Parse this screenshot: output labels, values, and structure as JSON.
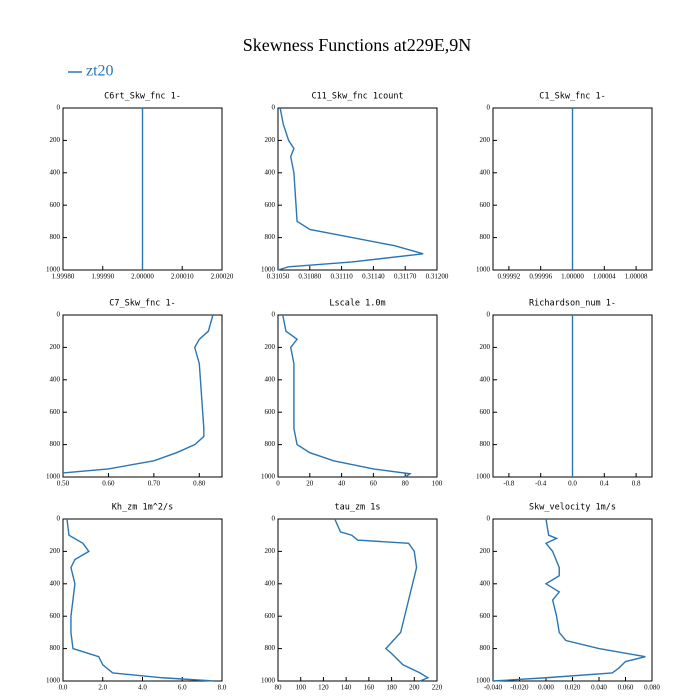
{
  "title": "Skewness Functions at229E,9N",
  "legend": {
    "name": "zt20",
    "color": "#2a76b4"
  },
  "chart_data": [
    {
      "type": "line",
      "title": "C6rt_Skw_fnc  1-",
      "color": "#2a76b4",
      "yinvert": true,
      "xlim": [
        1.9998,
        2.0002
      ],
      "xticks": [
        {
          "value": 1.9998,
          "label": "1.99980"
        },
        {
          "value": 1.9999,
          "label": "1.99990"
        },
        {
          "value": 2.0,
          "label": "2.00000"
        },
        {
          "value": 2.0001,
          "label": "2.00010"
        },
        {
          "value": 2.0002,
          "label": "2.00020"
        }
      ],
      "ylim": [
        0,
        1000
      ],
      "yticks": [
        0,
        200,
        400,
        600,
        800,
        1000
      ],
      "y": [
        0,
        1000
      ],
      "values": [
        2.0,
        2.0
      ]
    },
    {
      "type": "line",
      "title": "C11_Skw_fnc  1count",
      "color": "#2a76b4",
      "yinvert": true,
      "xlim": [
        0.3105,
        0.312
      ],
      "xticks": [
        {
          "value": 0.3105,
          "label": "0.31050"
        },
        {
          "value": 0.3108,
          "label": "0.31080"
        },
        {
          "value": 0.3111,
          "label": "0.31110"
        },
        {
          "value": 0.3114,
          "label": "0.31140"
        },
        {
          "value": 0.3117,
          "label": "0.31170"
        },
        {
          "value": 0.312,
          "label": "0.31200"
        }
      ],
      "ylim": [
        0,
        1000
      ],
      "yticks": [
        0,
        200,
        400,
        600,
        800,
        1000
      ],
      "y": [
        0,
        100,
        200,
        250,
        300,
        400,
        500,
        600,
        700,
        750,
        800,
        850,
        900,
        950,
        980,
        1000
      ],
      "values": [
        0.31052,
        0.31055,
        0.3106,
        0.31065,
        0.31062,
        0.31065,
        0.31066,
        0.31067,
        0.31068,
        0.3108,
        0.3112,
        0.3116,
        0.31187,
        0.3112,
        0.3106,
        0.3105
      ]
    },
    {
      "type": "line",
      "title": "C1_Skw_fnc  1-",
      "color": "#2a76b4",
      "yinvert": true,
      "xlim": [
        0.9999,
        1.0001
      ],
      "xticks": [
        {
          "value": 0.99992,
          "label": "0.99992"
        },
        {
          "value": 0.99996,
          "label": "0.99996"
        },
        {
          "value": 1.0,
          "label": "1.00000"
        },
        {
          "value": 1.00004,
          "label": "1.00004"
        },
        {
          "value": 1.00008,
          "label": "1.00008"
        }
      ],
      "ylim": [
        0,
        1000
      ],
      "yticks": [
        0,
        200,
        400,
        600,
        800,
        1000
      ],
      "y": [
        0,
        1000
      ],
      "values": [
        1.0,
        1.0
      ]
    },
    {
      "type": "line",
      "title": "C7_Skw_fnc  1-",
      "color": "#2a76b4",
      "yinvert": true,
      "xlim": [
        0.5,
        0.85
      ],
      "xticks": [
        {
          "value": 0.5,
          "label": "0.50"
        },
        {
          "value": 0.6,
          "label": "0.60"
        },
        {
          "value": 0.7,
          "label": "0.70"
        },
        {
          "value": 0.8,
          "label": "0.80"
        }
      ],
      "ylim": [
        0,
        1000
      ],
      "yticks": [
        0,
        200,
        400,
        600,
        800,
        1000
      ],
      "y": [
        0,
        100,
        150,
        200,
        300,
        500,
        700,
        750,
        800,
        850,
        900,
        950,
        975
      ],
      "values": [
        0.83,
        0.82,
        0.8,
        0.79,
        0.8,
        0.805,
        0.81,
        0.81,
        0.79,
        0.75,
        0.7,
        0.6,
        0.5
      ]
    },
    {
      "type": "line",
      "title": "Lscale  1.0m",
      "color": "#2a76b4",
      "yinvert": true,
      "xlim": [
        0,
        100
      ],
      "xticks": [
        0,
        20,
        40,
        60,
        80,
        100
      ],
      "ylim": [
        0,
        1000
      ],
      "yticks": [
        0,
        200,
        400,
        600,
        800,
        1000
      ],
      "y": [
        0,
        100,
        150,
        200,
        300,
        500,
        700,
        800,
        850,
        900,
        950,
        980,
        1000
      ],
      "values": [
        3,
        5,
        12,
        8,
        10,
        10,
        10,
        12,
        20,
        35,
        60,
        83,
        80
      ]
    },
    {
      "type": "line",
      "title": "Richardson_num  1-",
      "color": "#2a76b4",
      "yinvert": true,
      "xlim": [
        -1,
        1
      ],
      "xticks": [
        -0.8,
        -0.4,
        {
          "value": 0,
          "label": "0.0"
        },
        0.4,
        0.8
      ],
      "ylim": [
        0,
        1000
      ],
      "yticks": [
        0,
        200,
        400,
        600,
        800,
        1000
      ],
      "y": [
        0,
        1000
      ],
      "values": [
        0,
        0
      ]
    },
    {
      "type": "line",
      "title": "Kh_zm  1m^2/s",
      "color": "#2a76b4",
      "yinvert": true,
      "xlim": [
        0,
        8
      ],
      "xticks": [
        {
          "value": 0,
          "label": "0.0"
        },
        {
          "value": 2,
          "label": "2.0"
        },
        {
          "value": 4,
          "label": "4.0"
        },
        {
          "value": 6,
          "label": "6.0"
        },
        {
          "value": 8,
          "label": "8.0"
        }
      ],
      "ylim": [
        0,
        1000
      ],
      "yticks": [
        0,
        200,
        400,
        600,
        800,
        1000
      ],
      "y": [
        0,
        100,
        150,
        200,
        250,
        300,
        400,
        500,
        600,
        700,
        800,
        850,
        900,
        950,
        980,
        1000
      ],
      "values": [
        0.2,
        0.3,
        1.0,
        1.3,
        0.6,
        0.4,
        0.6,
        0.5,
        0.4,
        0.4,
        0.5,
        1.8,
        2.0,
        2.5,
        5.0,
        7.6
      ]
    },
    {
      "type": "line",
      "title": "tau_zm  1s",
      "color": "#2a76b4",
      "yinvert": true,
      "xlim": [
        80,
        220
      ],
      "xticks": [
        80,
        100,
        120,
        140,
        160,
        180,
        200,
        220
      ],
      "ylim": [
        0,
        1000
      ],
      "yticks": [
        0,
        200,
        400,
        600,
        800,
        1000
      ],
      "y": [
        0,
        80,
        100,
        130,
        150,
        200,
        300,
        500,
        700,
        800,
        830,
        900,
        950,
        980,
        1000
      ],
      "values": [
        130,
        135,
        145,
        150,
        195,
        200,
        202,
        195,
        188,
        175,
        180,
        190,
        205,
        212,
        205
      ]
    },
    {
      "type": "line",
      "title": "Skw_velocity  1m/s",
      "color": "#2a76b4",
      "yinvert": true,
      "xlim": [
        -0.04,
        0.08
      ],
      "xticks": [
        {
          "value": -0.04,
          "label": "-0.040"
        },
        {
          "value": -0.02,
          "label": "-0.020"
        },
        {
          "value": 0,
          "label": "0.000"
        },
        {
          "value": 0.02,
          "label": "0.020"
        },
        {
          "value": 0.04,
          "label": "0.040"
        },
        {
          "value": 0.06,
          "label": "0.060"
        },
        {
          "value": 0.08,
          "label": "0.080"
        }
      ],
      "ylim": [
        0,
        1000
      ],
      "yticks": [
        0,
        200,
        400,
        600,
        800,
        1000
      ],
      "y": [
        0,
        100,
        120,
        150,
        200,
        300,
        350,
        400,
        450,
        500,
        600,
        700,
        750,
        800,
        850,
        880,
        920,
        950,
        980,
        1000
      ],
      "values": [
        0.0,
        0.002,
        0.008,
        0.0,
        0.005,
        0.01,
        0.01,
        0.0,
        0.01,
        0.005,
        0.008,
        0.01,
        0.015,
        0.04,
        0.075,
        0.06,
        0.055,
        0.05,
        0.0,
        -0.04
      ]
    }
  ]
}
